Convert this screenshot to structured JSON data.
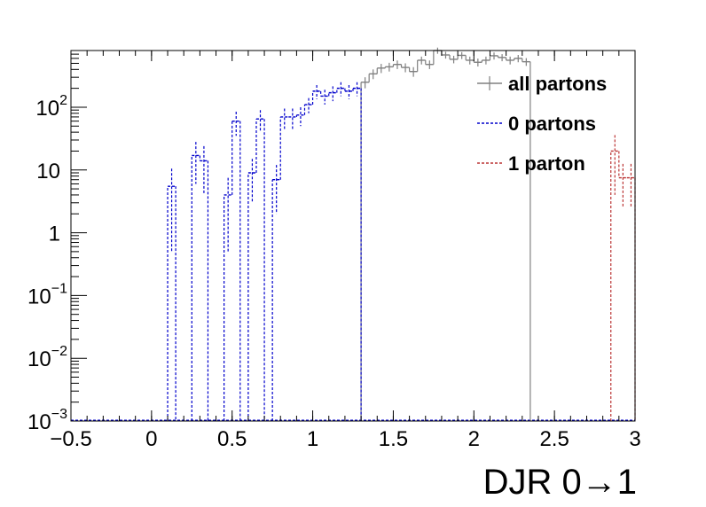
{
  "chart_data": {
    "type": "line",
    "title": "",
    "xlabel": "DJR 0→1",
    "ylabel": "",
    "xlim": [
      -0.5,
      3.0
    ],
    "ylim": [
      0.001,
      800
    ],
    "y_scale": "log",
    "grid": false,
    "legend_position": "top-right",
    "x_ticks": [
      {
        "value": -0.5,
        "label": "−0.5"
      },
      {
        "value": 0,
        "label": "0"
      },
      {
        "value": 0.5,
        "label": "0.5"
      },
      {
        "value": 1,
        "label": "1"
      },
      {
        "value": 1.5,
        "label": "1.5"
      },
      {
        "value": 2,
        "label": "2"
      },
      {
        "value": 2.5,
        "label": "2.5"
      },
      {
        "value": 3,
        "label": "3"
      }
    ],
    "y_ticks": [
      {
        "value": 0.001,
        "base": "10",
        "exp": "−3"
      },
      {
        "value": 0.01,
        "base": "10",
        "exp": "−2"
      },
      {
        "value": 0.1,
        "base": "10",
        "exp": "−1"
      },
      {
        "value": 1,
        "base": "1",
        "exp": ""
      },
      {
        "value": 10,
        "base": "10",
        "exp": ""
      },
      {
        "value": 100,
        "base": "10",
        "exp": "2"
      }
    ],
    "bin_width": 0.05,
    "series": [
      {
        "name": "all partons",
        "color": "#808080",
        "style": "solid",
        "bins": [
          {
            "x": 1.3,
            "y": 250,
            "err": 50
          },
          {
            "x": 1.35,
            "y": 340,
            "err": 60
          },
          {
            "x": 1.4,
            "y": 420,
            "err": 70
          },
          {
            "x": 1.45,
            "y": 440,
            "err": 70
          },
          {
            "x": 1.5,
            "y": 480,
            "err": 75
          },
          {
            "x": 1.55,
            "y": 430,
            "err": 70
          },
          {
            "x": 1.6,
            "y": 370,
            "err": 65
          },
          {
            "x": 1.65,
            "y": 560,
            "err": 80
          },
          {
            "x": 1.7,
            "y": 480,
            "err": 75
          },
          {
            "x": 1.75,
            "y": 800,
            "err": 90
          },
          {
            "x": 1.8,
            "y": 680,
            "err": 85
          },
          {
            "x": 1.85,
            "y": 580,
            "err": 80
          },
          {
            "x": 1.9,
            "y": 670,
            "err": 85
          },
          {
            "x": 1.95,
            "y": 560,
            "err": 80
          },
          {
            "x": 2.0,
            "y": 520,
            "err": 75
          },
          {
            "x": 2.05,
            "y": 560,
            "err": 80
          },
          {
            "x": 2.1,
            "y": 660,
            "err": 85
          },
          {
            "x": 2.15,
            "y": 620,
            "err": 80
          },
          {
            "x": 2.2,
            "y": 560,
            "err": 80
          },
          {
            "x": 2.25,
            "y": 600,
            "err": 80
          },
          {
            "x": 2.3,
            "y": 530,
            "err": 75
          }
        ]
      },
      {
        "name": "0 partons",
        "color": "#0000cc",
        "style": "dashed",
        "bins": [
          {
            "x": 0.1,
            "y": 5.5,
            "err": 5
          },
          {
            "x": 0.25,
            "y": 17,
            "err": 11
          },
          {
            "x": 0.3,
            "y": 14,
            "err": 10
          },
          {
            "x": 0.45,
            "y": 4,
            "err": 3.5
          },
          {
            "x": 0.5,
            "y": 60,
            "err": 25
          },
          {
            "x": 0.6,
            "y": 9,
            "err": 6
          },
          {
            "x": 0.65,
            "y": 65,
            "err": 25
          },
          {
            "x": 0.75,
            "y": 7,
            "err": 5
          },
          {
            "x": 0.8,
            "y": 70,
            "err": 25
          },
          {
            "x": 0.85,
            "y": 70,
            "err": 25
          },
          {
            "x": 0.9,
            "y": 75,
            "err": 25
          },
          {
            "x": 0.95,
            "y": 110,
            "err": 30
          },
          {
            "x": 1.0,
            "y": 180,
            "err": 45
          },
          {
            "x": 1.05,
            "y": 150,
            "err": 40
          },
          {
            "x": 1.1,
            "y": 170,
            "err": 45
          },
          {
            "x": 1.15,
            "y": 200,
            "err": 50
          },
          {
            "x": 1.2,
            "y": 180,
            "err": 45
          },
          {
            "x": 1.25,
            "y": 200,
            "err": 50
          }
        ]
      },
      {
        "name": "1 parton",
        "color": "#bb3333",
        "style": "dashed",
        "bins": [
          {
            "x": 2.85,
            "y": 20,
            "err": 16
          },
          {
            "x": 2.9,
            "y": 7.5,
            "err": 5
          },
          {
            "x": 2.95,
            "y": 7.5,
            "err": 5
          }
        ]
      }
    ]
  }
}
